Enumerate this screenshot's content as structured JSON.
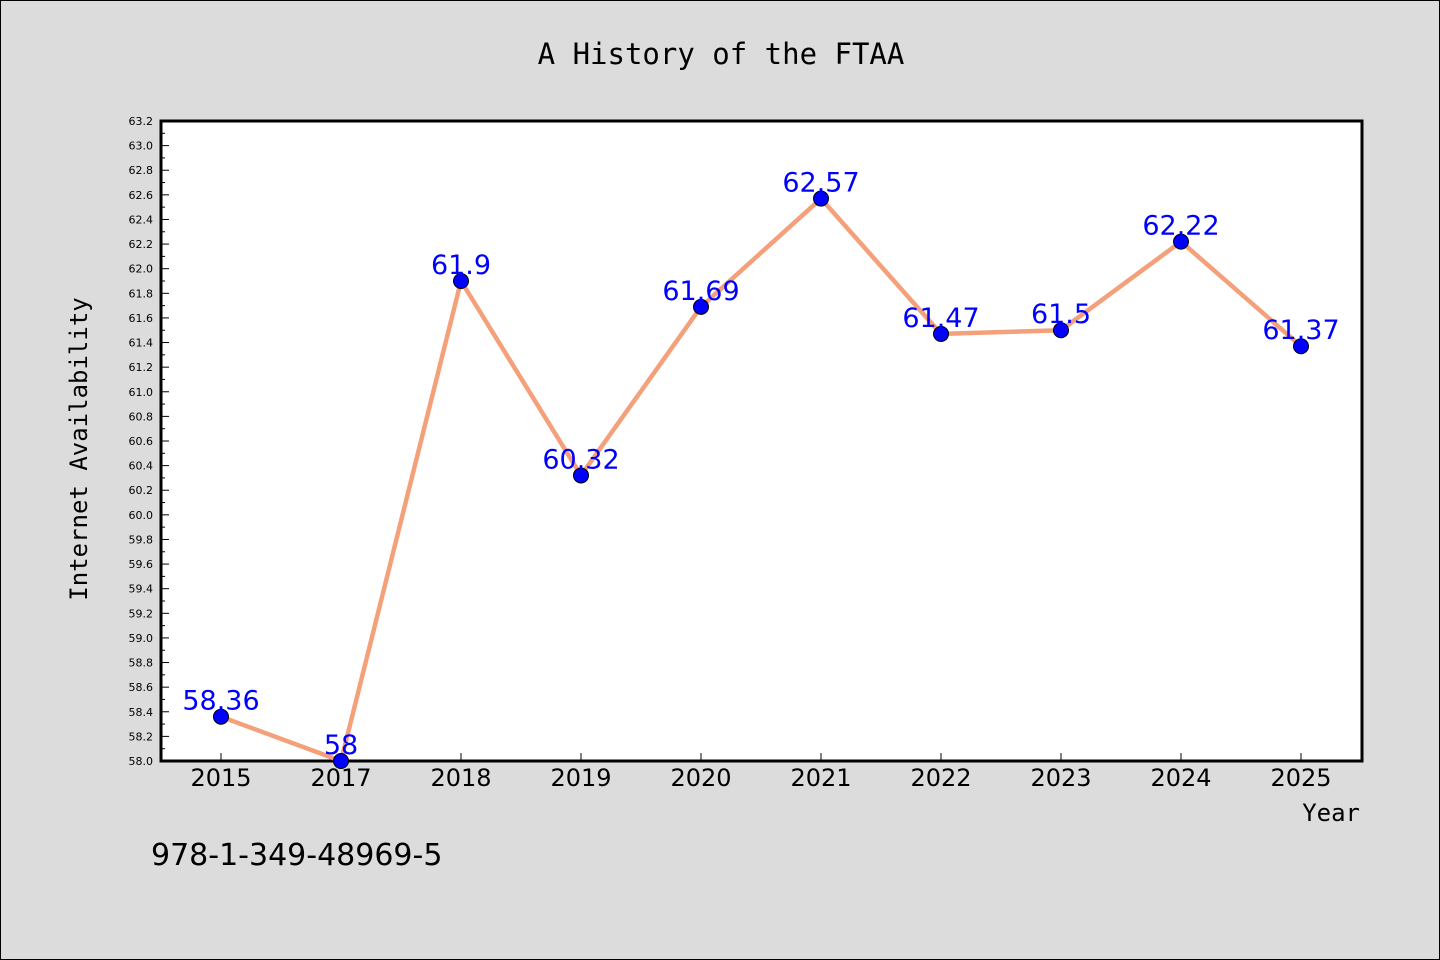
{
  "chart_data": {
    "type": "line",
    "title": "A History of the FTAA",
    "xlabel": "Year",
    "ylabel": "Internet Availability",
    "categories": [
      "2015",
      "2017",
      "2018",
      "2019",
      "2020",
      "2021",
      "2022",
      "2023",
      "2024",
      "2025"
    ],
    "series": [
      {
        "values": [
          58.36,
          58.0,
          61.9,
          60.32,
          61.69,
          62.57,
          61.47,
          61.5,
          62.22,
          61.37
        ],
        "data_labels": [
          "58.36",
          "58",
          "61.9",
          "60.32",
          "61.69",
          "62.57",
          "61.47",
          "61.5",
          "62.22",
          "61.37"
        ],
        "line_color": "#f4a07a",
        "marker_color": "#0000ff"
      }
    ],
    "ylim": [
      58.0,
      63.2
    ],
    "yticks": [
      "58.0",
      "58.2",
      "58.4",
      "58.6",
      "58.8",
      "59.0",
      "59.2",
      "59.4",
      "59.6",
      "59.8",
      "60.0",
      "60.2",
      "60.4",
      "60.6",
      "60.8",
      "61.0",
      "61.2",
      "61.4",
      "61.6",
      "61.8",
      "62.0",
      "62.2",
      "62.4",
      "62.6",
      "62.8",
      "63.0",
      "63.2"
    ],
    "grid": false,
    "label_color": "#0000ff"
  },
  "footer_code": "978-1-349-48969-5"
}
